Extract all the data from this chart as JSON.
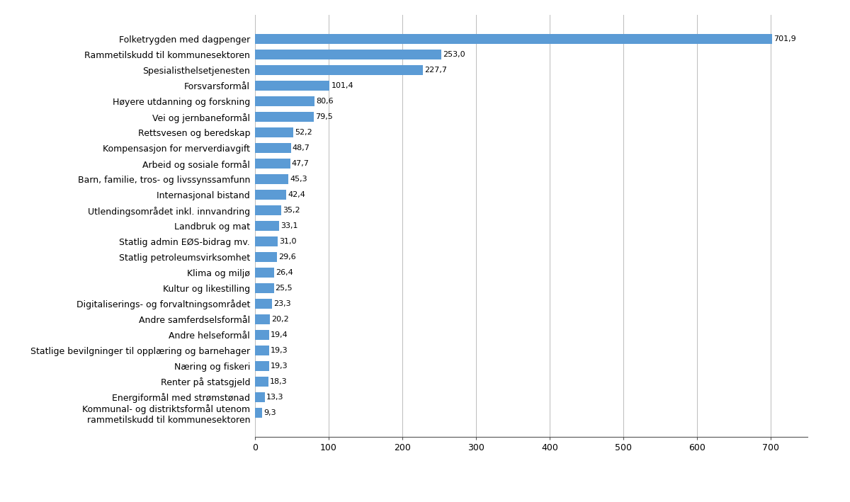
{
  "categories": [
    "Kommunal- og distriktsformål utenom\nrammetilskudd til kommunesektoren",
    "Energiformål med strømstønad",
    "Renter på statsgjeld",
    "Næring og fiskeri",
    "Statlige bevilgninger til opplæring og barnehager",
    "Andre helseformål",
    "Andre samferdselsformål",
    "Digitaliserings- og forvaltningsområdet",
    "Kultur og likestilling",
    "Klima og miljø",
    "Statlig petroleumsvirksomhet",
    "Statlig admin EØS-bidrag mv.",
    "Landbruk og mat",
    "Utlendingsområdet inkl. innvandring",
    "Internasjonal bistand",
    "Barn, familie, tros- og livssynssamfunn",
    "Arbeid og sosiale formål",
    "Kompensasjon for merverdiavgift",
    "Rettsvesen og beredskap",
    "Vei og jernbaneformål",
    "Høyere utdanning og forskning",
    "Forsvarsformål",
    "Spesialisthelsetjenesten",
    "Rammetilskudd til kommunesektoren",
    "Folketrygden med dagpenger"
  ],
  "values": [
    9.3,
    13.3,
    18.3,
    19.3,
    19.3,
    19.4,
    20.2,
    23.3,
    25.5,
    26.4,
    29.6,
    31.0,
    33.1,
    35.2,
    42.4,
    45.3,
    47.7,
    48.7,
    52.2,
    79.5,
    80.6,
    101.4,
    227.7,
    253.0,
    701.9
  ],
  "bar_color": "#5b9bd5",
  "label_color": "#000000",
  "background_color": "#ffffff",
  "xlim": [
    0,
    750
  ],
  "xticks": [
    0,
    100,
    200,
    300,
    400,
    500,
    600,
    700
  ],
  "bar_height": 0.62,
  "value_fontsize": 8.0,
  "label_fontsize": 9.0,
  "grid_color": "#bbbbbb",
  "spine_color": "#555555"
}
